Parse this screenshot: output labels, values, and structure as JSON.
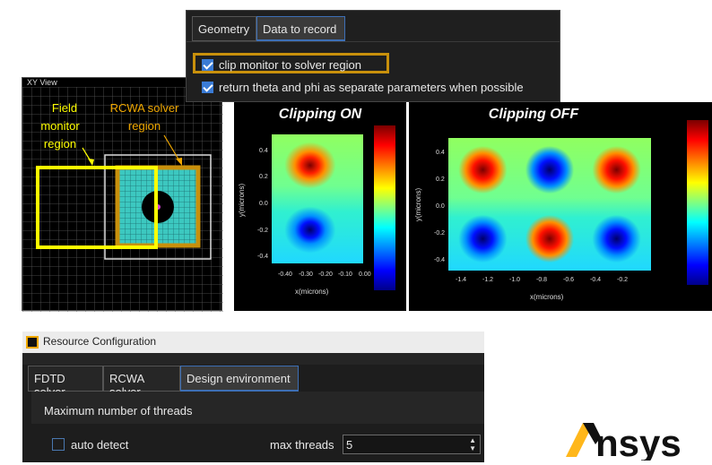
{
  "xy_view": {
    "title": "XY View",
    "field_monitor_label": [
      "Field",
      "monitor",
      "region"
    ],
    "rcwa_label": [
      "RCWA solver",
      "region"
    ]
  },
  "plots": {
    "left_title": "Clipping ON",
    "right_title": "Clipping OFF",
    "ylabel": "y(microns)",
    "xlabel": "x(microns)",
    "left_yticks": [
      "0.4",
      "0.2",
      "0.0",
      "-0.2",
      "-0.4"
    ],
    "left_xticks": [
      "-0.40",
      "-0.30",
      "-0.20",
      "-0.10",
      "0.00"
    ],
    "right_yticks": [
      "0.4",
      "0.2",
      "0.0",
      "-0.2",
      "-0.4"
    ],
    "right_xticks": [
      "-1.4",
      "-1.2",
      "-1.0",
      "-0.8",
      "-0.6",
      "-0.4",
      "-0.2"
    ]
  },
  "data_dialog": {
    "tabs": [
      "Geometry",
      "Data to record"
    ],
    "active_tab": "Data to record",
    "options": [
      {
        "label": "clip monitor to solver region",
        "checked": true,
        "highlighted": true
      },
      {
        "label": "return theta and phi as separate parameters when possible",
        "checked": true
      }
    ]
  },
  "resource_config": {
    "title": "Resource Configuration",
    "tabs": [
      "FDTD solver",
      "RCWA solver",
      "Design environment"
    ],
    "active_tab": "Design environment",
    "section": "Maximum number of threads",
    "auto_detect_label": "auto detect",
    "auto_detect_checked": false,
    "max_threads_label": "max threads",
    "max_threads_value": "5"
  },
  "logo": {
    "text": "Ansys"
  },
  "colors": {
    "highlight": "#c8900c",
    "monitor": "#ffff00",
    "accent": "#3a7bd5",
    "logo_bar": "#ffb71b"
  }
}
